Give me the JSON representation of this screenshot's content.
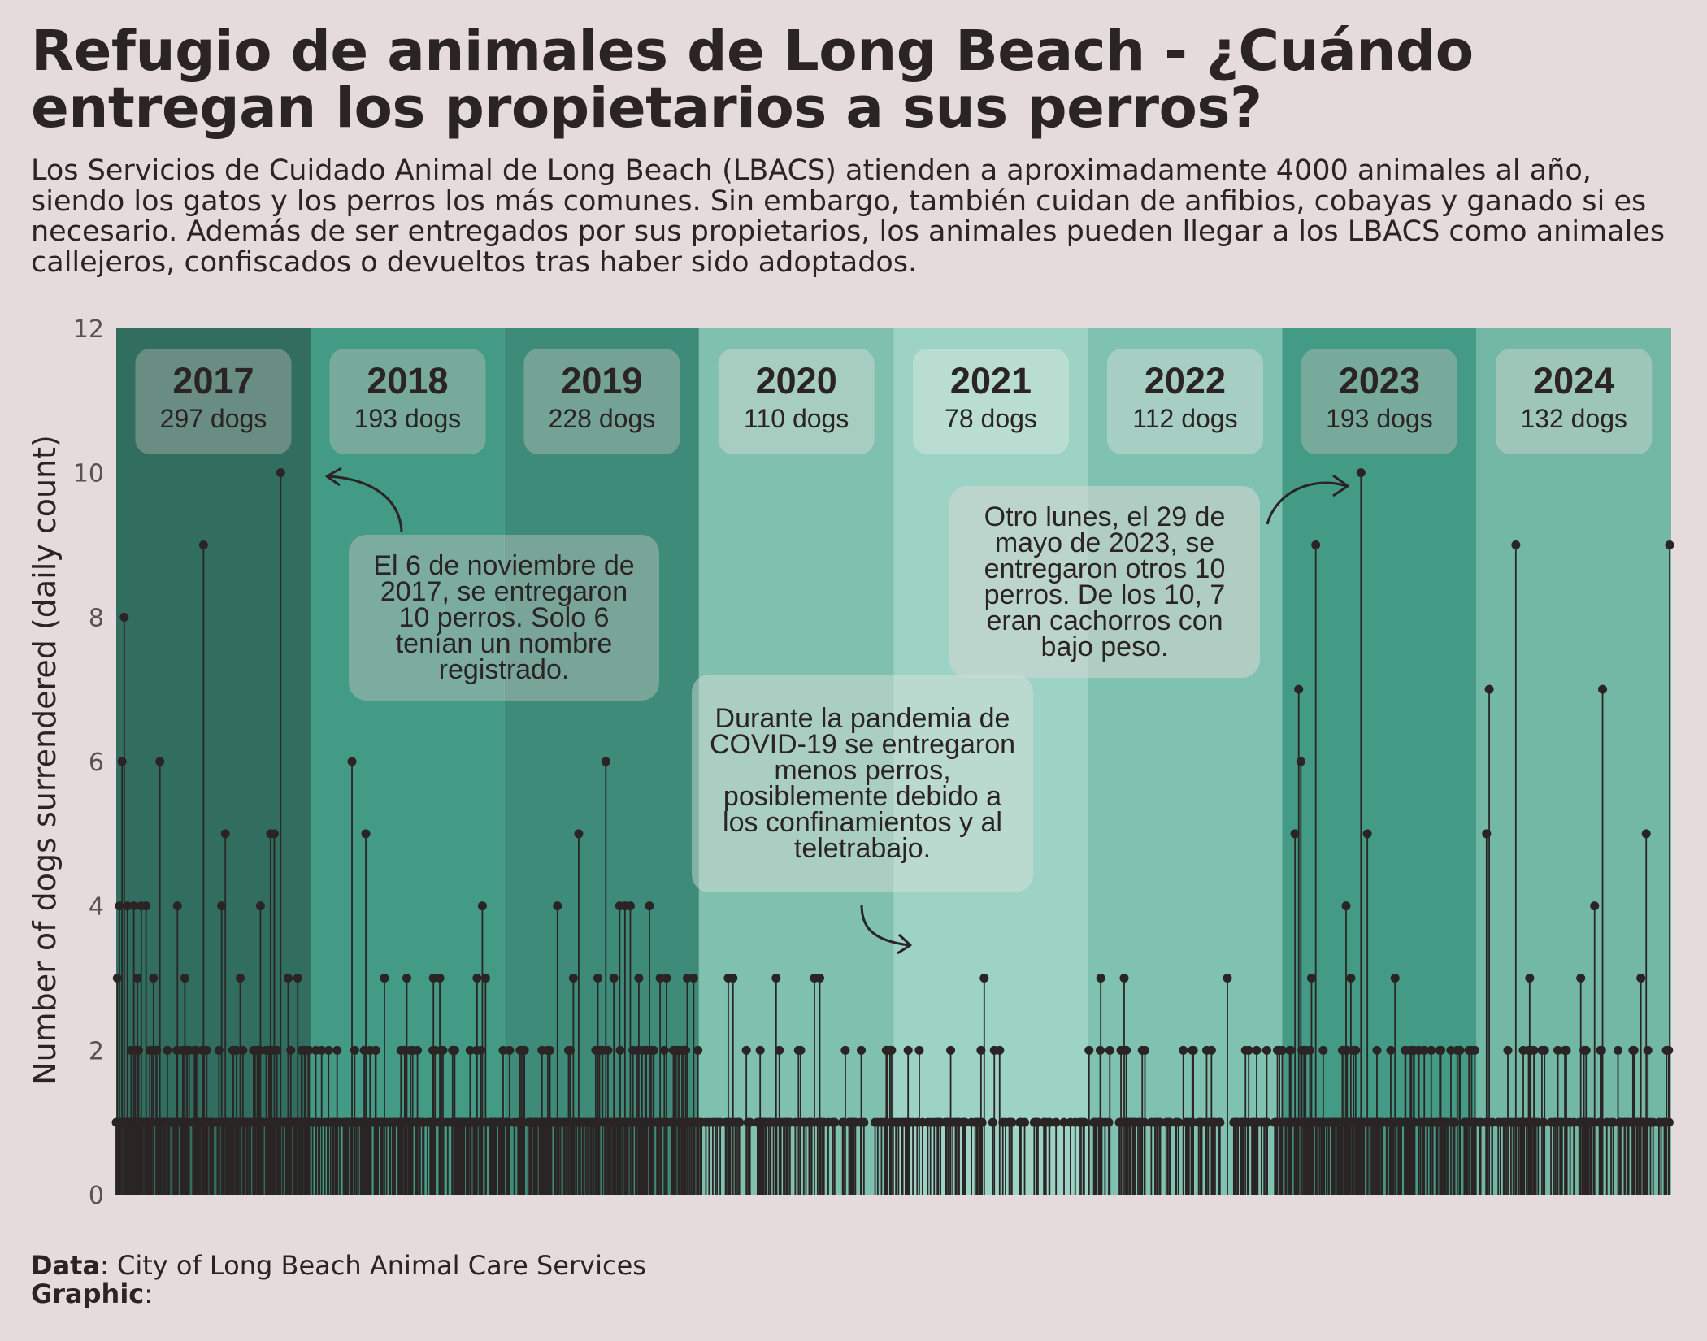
{
  "title": "Refugio de animales de Long Beach - ¿Cuándo entregan los propietarios a sus perros?",
  "subtitle": "Los Servicios de Cuidado Animal de Long Beach (LBACS) atienden a aproximadamente 4000 animales al año, siendo los gatos y los perros los más comunes. Sin embargo, también cuidan de anfibios, cobayas y ganado si es necesario. Además de ser entregados por sus propietarios, los animales pueden llegar a los LBACS como animales callejeros, confiscados o devueltos tras haber sido adoptados.",
  "footer": {
    "data_label": "Data",
    "data_value": ": City of Long Beach  Animal Care Services",
    "graphic_label": "Graphic",
    "graphic_value": ":"
  },
  "colors": {
    "background": "#e5dbdc",
    "ink": "#2b2424"
  },
  "chart_data": {
    "type": "lollipop",
    "ylabel": "Number of dogs surrendered (daily count)",
    "ylim": [
      0,
      12
    ],
    "yticks": [
      0,
      2,
      4,
      6,
      8,
      10,
      12
    ],
    "x_range": [
      "2017-01-01",
      "2024-12-31"
    ],
    "years": [
      {
        "year": "2017",
        "label": "297 dogs",
        "total": 297,
        "color": "#316e5f"
      },
      {
        "year": "2018",
        "label": "193 dogs",
        "total": 193,
        "color": "#439a85"
      },
      {
        "year": "2019",
        "label": "228 dogs",
        "total": 228,
        "color": "#3d8b78"
      },
      {
        "year": "2020",
        "label": "110 dogs",
        "total": 110,
        "color": "#7fc0ae"
      },
      {
        "year": "2021",
        "label": "78 dogs",
        "total": 78,
        "color": "#9cd3c5"
      },
      {
        "year": "2022",
        "label": "112 dogs",
        "total": 112,
        "color": "#80c2b1"
      },
      {
        "year": "2023",
        "label": "193 dogs",
        "total": 193,
        "color": "#439a85"
      },
      {
        "year": "2024",
        "label": "132 dogs",
        "total": 132,
        "color": "#72b8a5"
      }
    ],
    "points": [
      [
        "2017-01-03",
        3
      ],
      [
        "2017-01-07",
        4
      ],
      [
        "2017-01-12",
        6
      ],
      [
        "2017-01-16",
        8
      ],
      [
        "2017-01-22",
        4
      ],
      [
        "2017-02-03",
        4
      ],
      [
        "2017-02-10",
        3
      ],
      [
        "2017-02-17",
        4
      ],
      [
        "2017-02-26",
        4
      ],
      [
        "2017-03-12",
        3
      ],
      [
        "2017-03-24",
        6
      ],
      [
        "2017-04-26",
        4
      ],
      [
        "2017-05-10",
        3
      ],
      [
        "2017-06-14",
        9
      ],
      [
        "2017-07-18",
        4
      ],
      [
        "2017-07-25",
        5
      ],
      [
        "2017-08-22",
        3
      ],
      [
        "2017-09-29",
        4
      ],
      [
        "2017-10-18",
        5
      ],
      [
        "2017-10-25",
        5
      ],
      [
        "2017-11-06",
        10
      ],
      [
        "2017-11-20",
        3
      ],
      [
        "2017-12-08",
        3
      ],
      [
        "2018-03-20",
        6
      ],
      [
        "2018-04-15",
        5
      ],
      [
        "2018-05-20",
        3
      ],
      [
        "2018-07-01",
        3
      ],
      [
        "2018-08-20",
        3
      ],
      [
        "2018-09-01",
        3
      ],
      [
        "2018-11-10",
        3
      ],
      [
        "2018-11-20",
        4
      ],
      [
        "2018-11-26",
        3
      ],
      [
        "2019-04-10",
        4
      ],
      [
        "2019-05-10",
        3
      ],
      [
        "2019-05-20",
        5
      ],
      [
        "2019-06-25",
        3
      ],
      [
        "2019-07-10",
        6
      ],
      [
        "2019-07-25",
        3
      ],
      [
        "2019-08-05",
        4
      ],
      [
        "2019-08-15",
        4
      ],
      [
        "2019-08-25",
        4
      ],
      [
        "2019-09-10",
        3
      ],
      [
        "2019-09-30",
        4
      ],
      [
        "2019-10-20",
        3
      ],
      [
        "2019-11-01",
        3
      ],
      [
        "2019-12-10",
        3
      ],
      [
        "2019-12-22",
        3
      ],
      [
        "2020-02-25",
        3
      ],
      [
        "2020-03-05",
        3
      ],
      [
        "2020-05-25",
        3
      ],
      [
        "2020-08-05",
        3
      ],
      [
        "2020-08-15",
        3
      ],
      [
        "2021-06-20",
        3
      ],
      [
        "2022-01-25",
        3
      ],
      [
        "2022-03-10",
        3
      ],
      [
        "2022-09-20",
        3
      ],
      [
        "2023-01-25",
        5
      ],
      [
        "2023-02-01",
        7
      ],
      [
        "2023-02-05",
        6
      ],
      [
        "2023-02-25",
        3
      ],
      [
        "2023-03-05",
        9
      ],
      [
        "2023-05-01",
        4
      ],
      [
        "2023-05-10",
        3
      ],
      [
        "2023-05-29",
        10
      ],
      [
        "2023-06-10",
        5
      ],
      [
        "2023-08-01",
        3
      ],
      [
        "2024-01-20",
        5
      ],
      [
        "2024-01-25",
        7
      ],
      [
        "2024-03-15",
        9
      ],
      [
        "2024-04-10",
        3
      ],
      [
        "2024-07-15",
        3
      ],
      [
        "2024-08-10",
        4
      ],
      [
        "2024-08-25",
        7
      ],
      [
        "2024-11-05",
        3
      ],
      [
        "2024-11-15",
        5
      ],
      [
        "2024-12-29",
        9
      ]
    ],
    "annotations": [
      {
        "id": "nov-2017",
        "text": "El 6 de noviembre de 2017, se entregaron 10 perros. Solo 6 tenían un nombre registrado."
      },
      {
        "id": "covid",
        "text": "Durante la pandemia de COVID-19 se entregaron menos perros, posiblemente debido a los confinamientos y al teletrabajo."
      },
      {
        "id": "may-2023",
        "text": "Otro lunes, el 29 de mayo de 2023, se entregaron otros 10 perros. De los 10, 7 eran cachorros con bajo peso."
      }
    ]
  }
}
